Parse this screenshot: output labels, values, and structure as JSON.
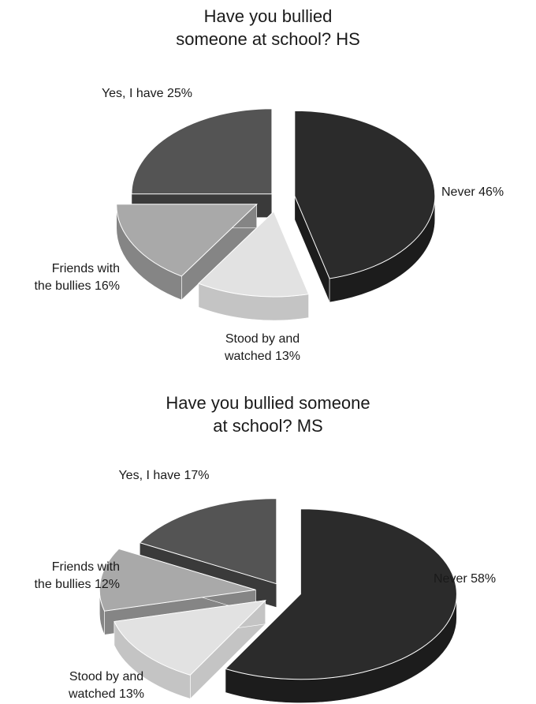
{
  "chart_data": [
    {
      "type": "pie",
      "title_lines": [
        "Have you bullied",
        "someone at school? HS"
      ],
      "slices": [
        {
          "label_lines": [
            "Never 46%"
          ],
          "value": 46,
          "color": "#2b2b2b",
          "side_color": "#1c1c1c"
        },
        {
          "label_lines": [
            "Stood by and",
            "watched 13%"
          ],
          "value": 13,
          "color": "#e2e2e2",
          "side_color": "#c4c4c4"
        },
        {
          "label_lines": [
            "Friends with",
            "the bullies 16%"
          ],
          "value": 16,
          "color": "#a9a9a9",
          "side_color": "#858585"
        },
        {
          "label_lines": [
            "Yes, I have 25%"
          ],
          "value": 25,
          "color": "#545454",
          "side_color": "#3a3a3a"
        }
      ]
    },
    {
      "type": "pie",
      "title_lines": [
        "Have you bullied someone",
        "at school? MS"
      ],
      "slices": [
        {
          "label_lines": [
            "Never 58%"
          ],
          "value": 58,
          "color": "#2b2b2b",
          "side_color": "#1c1c1c"
        },
        {
          "label_lines": [
            "Stood by and",
            "watched 13%"
          ],
          "value": 13,
          "color": "#e2e2e2",
          "side_color": "#c4c4c4"
        },
        {
          "label_lines": [
            "Friends with",
            "the bullies 12%"
          ],
          "value": 12,
          "color": "#a9a9a9",
          "side_color": "#858585"
        },
        {
          "label_lines": [
            "Yes, I have 17%"
          ],
          "value": 17,
          "color": "#545454",
          "side_color": "#3a3a3a"
        }
      ]
    }
  ]
}
